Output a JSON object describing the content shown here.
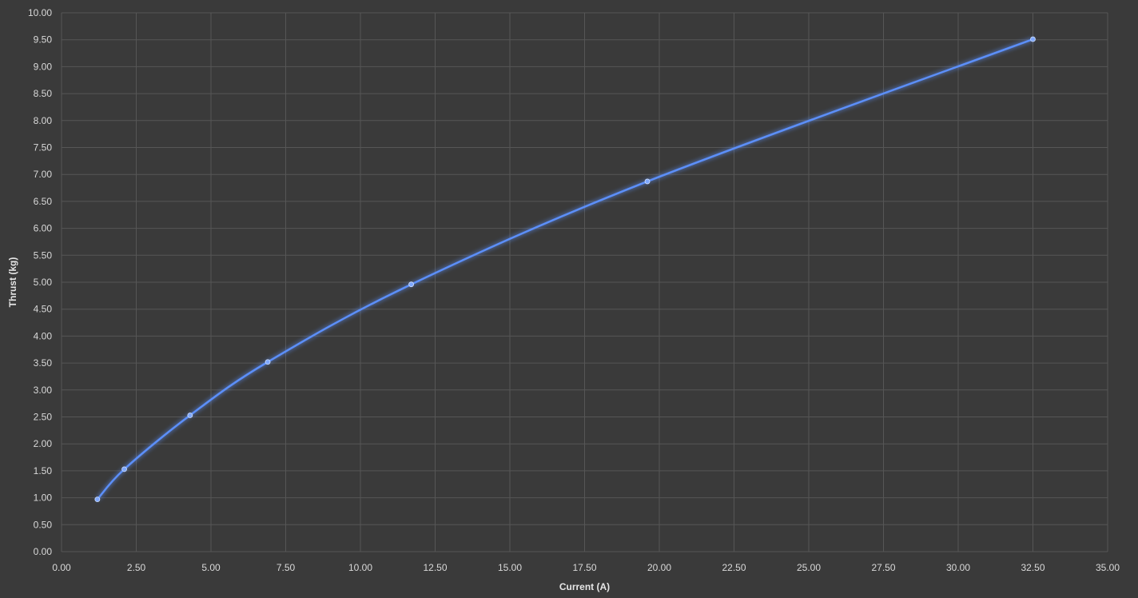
{
  "chart_data": {
    "type": "scatter",
    "title": "",
    "xlabel": "Current (A)",
    "ylabel": "Thrust (kg)",
    "xlim": [
      0,
      35
    ],
    "ylim": [
      0,
      10
    ],
    "x_ticks": [
      "0.00",
      "2.50",
      "5.00",
      "7.50",
      "10.00",
      "12.50",
      "15.00",
      "17.50",
      "20.00",
      "22.50",
      "25.00",
      "27.50",
      "30.00",
      "32.50",
      "35.00"
    ],
    "y_ticks": [
      "0.00",
      "0.50",
      "1.00",
      "1.50",
      "2.00",
      "2.50",
      "3.00",
      "3.50",
      "4.00",
      "4.50",
      "5.00",
      "5.50",
      "6.00",
      "6.50",
      "7.00",
      "7.50",
      "8.00",
      "8.50",
      "9.00",
      "9.50",
      "10.00"
    ],
    "grid": true,
    "smooth_line": true,
    "series": [
      {
        "color": "#5b8ff9",
        "x": [
          1.2,
          2.1,
          4.3,
          6.9,
          11.7,
          19.6,
          32.5
        ],
        "y": [
          0.97,
          1.53,
          2.53,
          3.52,
          4.96,
          6.87,
          9.51
        ]
      }
    ]
  }
}
